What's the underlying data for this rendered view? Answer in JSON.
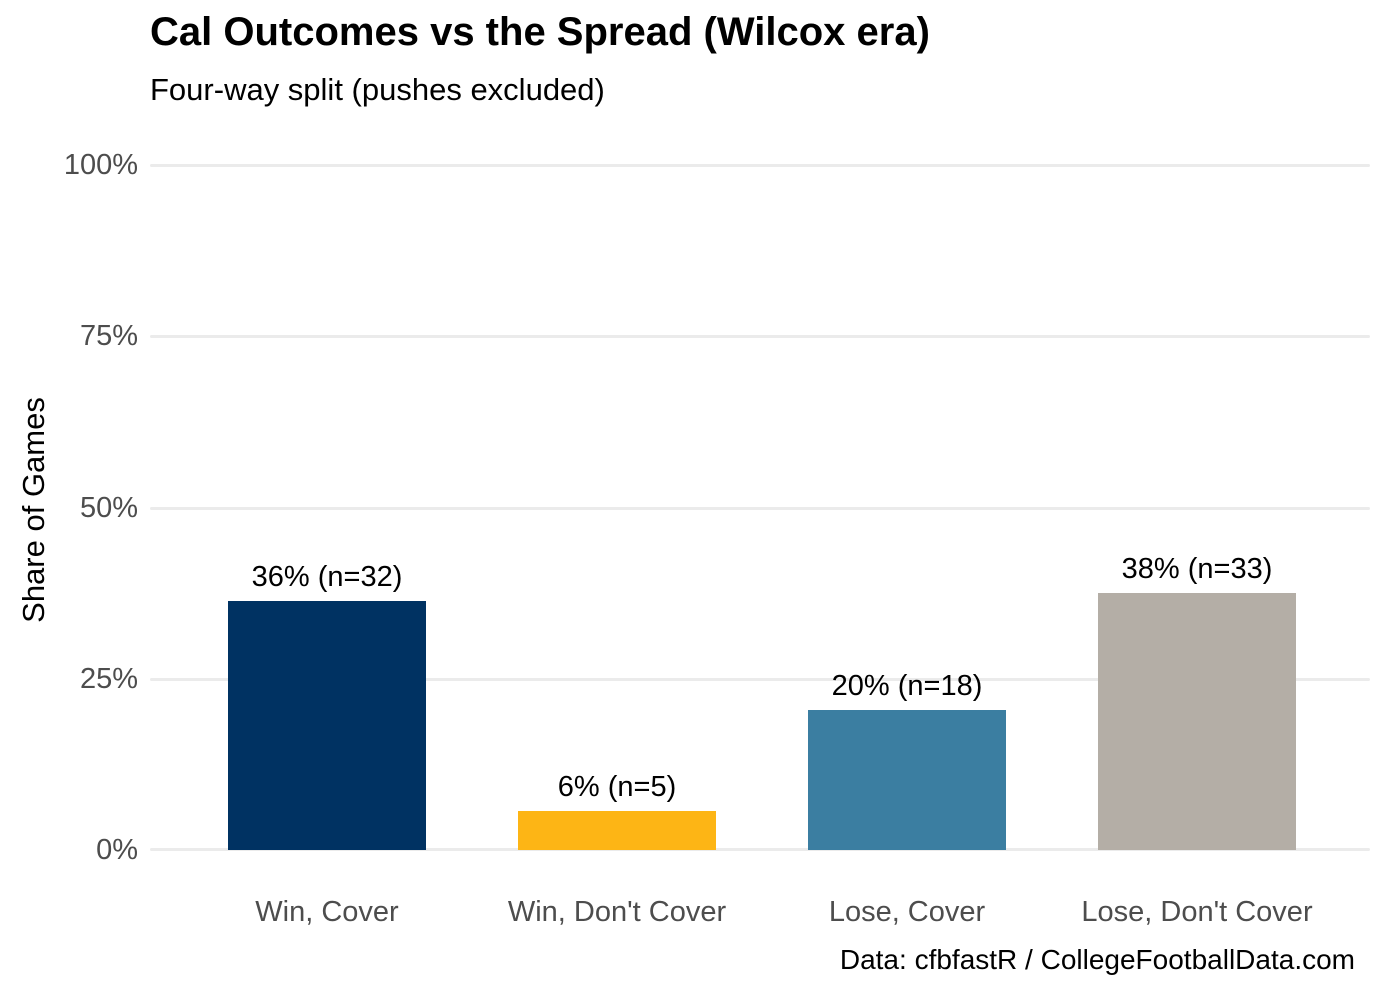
{
  "title": "Cal Outcomes vs the Spread (Wilcox era)",
  "subtitle": "Four-way split (pushes excluded)",
  "caption": "Data: cfbfastR / CollegeFootballData.com",
  "y_axis": {
    "label": "Share of Games",
    "ticks": [
      "100%",
      "75%",
      "50%",
      "25%",
      "0%"
    ]
  },
  "chart_data": {
    "type": "bar",
    "title": "Cal Outcomes vs the Spread (Wilcox era)",
    "subtitle": "Four-way split (pushes excluded)",
    "caption": "Data: cfbfastR / CollegeFootballData.com",
    "categories": [
      "Win, Cover",
      "Win, Don't Cover",
      "Lose, Cover",
      "Lose, Don't Cover"
    ],
    "values": [
      36.4,
      5.7,
      20.5,
      37.5
    ],
    "counts": [
      32,
      5,
      18,
      33
    ],
    "value_labels": [
      "36% (n=32)",
      "6% (n=5)",
      "20% (n=18)",
      "38% (n=33)"
    ],
    "bar_colors": [
      "#003262",
      "#FDB515",
      "#3B7EA1",
      "#B4AEA6"
    ],
    "xlabel": "",
    "ylabel": "Share of Games",
    "ylim": [
      0,
      100
    ],
    "ytick_values": [
      0,
      25,
      50,
      75,
      100
    ],
    "grid": "horizontal-only",
    "legend": "none",
    "background": "#FFFFFF",
    "gridline_color": "#EBEBEB",
    "axis_text_color": "#4D4D4D"
  }
}
